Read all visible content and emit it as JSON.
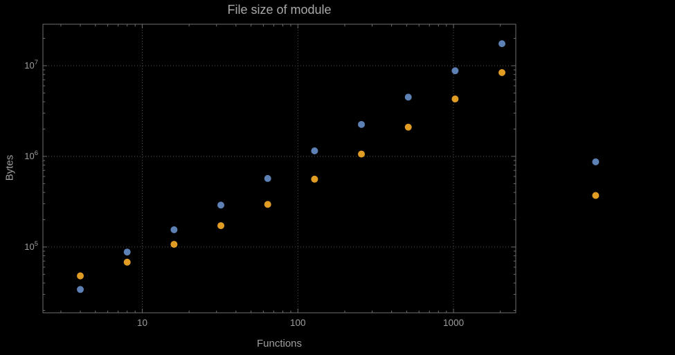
{
  "chart_data": {
    "type": "scatter",
    "title": "File size of module",
    "xlabel": "Functions",
    "ylabel": "Bytes",
    "x_scale": "log",
    "y_scale": "log",
    "grid": "dotted",
    "legend": "none",
    "x_ticks": [
      10,
      100,
      1000
    ],
    "x_tick_labels": [
      "10",
      "100",
      "1000"
    ],
    "y_ticks": [
      100000,
      1000000,
      10000000
    ],
    "y_tick_labels": [
      {
        "mantissa": "10",
        "exponent": "5"
      },
      {
        "mantissa": "10",
        "exponent": "6"
      },
      {
        "mantissa": "10",
        "exponent": "7"
      }
    ],
    "x_range": [
      2.3,
      2512
    ],
    "y_range": [
      18800,
      28700000
    ],
    "note": "last point of each series lies beyond right edge of plot frame (unclipped)",
    "series": [
      {
        "name": "series-blue",
        "color": "#5E81B5",
        "points": [
          [
            4,
            34000
          ],
          [
            8,
            88000
          ],
          [
            16,
            155000
          ],
          [
            32,
            290000
          ],
          [
            64,
            570000
          ],
          [
            128,
            1150000
          ],
          [
            256,
            2250000
          ],
          [
            512,
            4500000
          ],
          [
            1024,
            8800000
          ],
          [
            2048,
            17500000
          ],
          [
            8192,
            870000
          ]
        ]
      },
      {
        "name": "series-orange",
        "color": "#E19C24",
        "points": [
          [
            4,
            48000
          ],
          [
            8,
            68000
          ],
          [
            16,
            107000
          ],
          [
            32,
            172000
          ],
          [
            64,
            295000
          ],
          [
            128,
            560000
          ],
          [
            256,
            1060000
          ],
          [
            512,
            2100000
          ],
          [
            1024,
            4300000
          ],
          [
            2048,
            8400000
          ],
          [
            8192,
            370000
          ]
        ]
      }
    ],
    "colors": {
      "background": "#000000",
      "text": "#9e9e9e",
      "frame": "#6f6f6f",
      "grid": "#555555"
    }
  }
}
